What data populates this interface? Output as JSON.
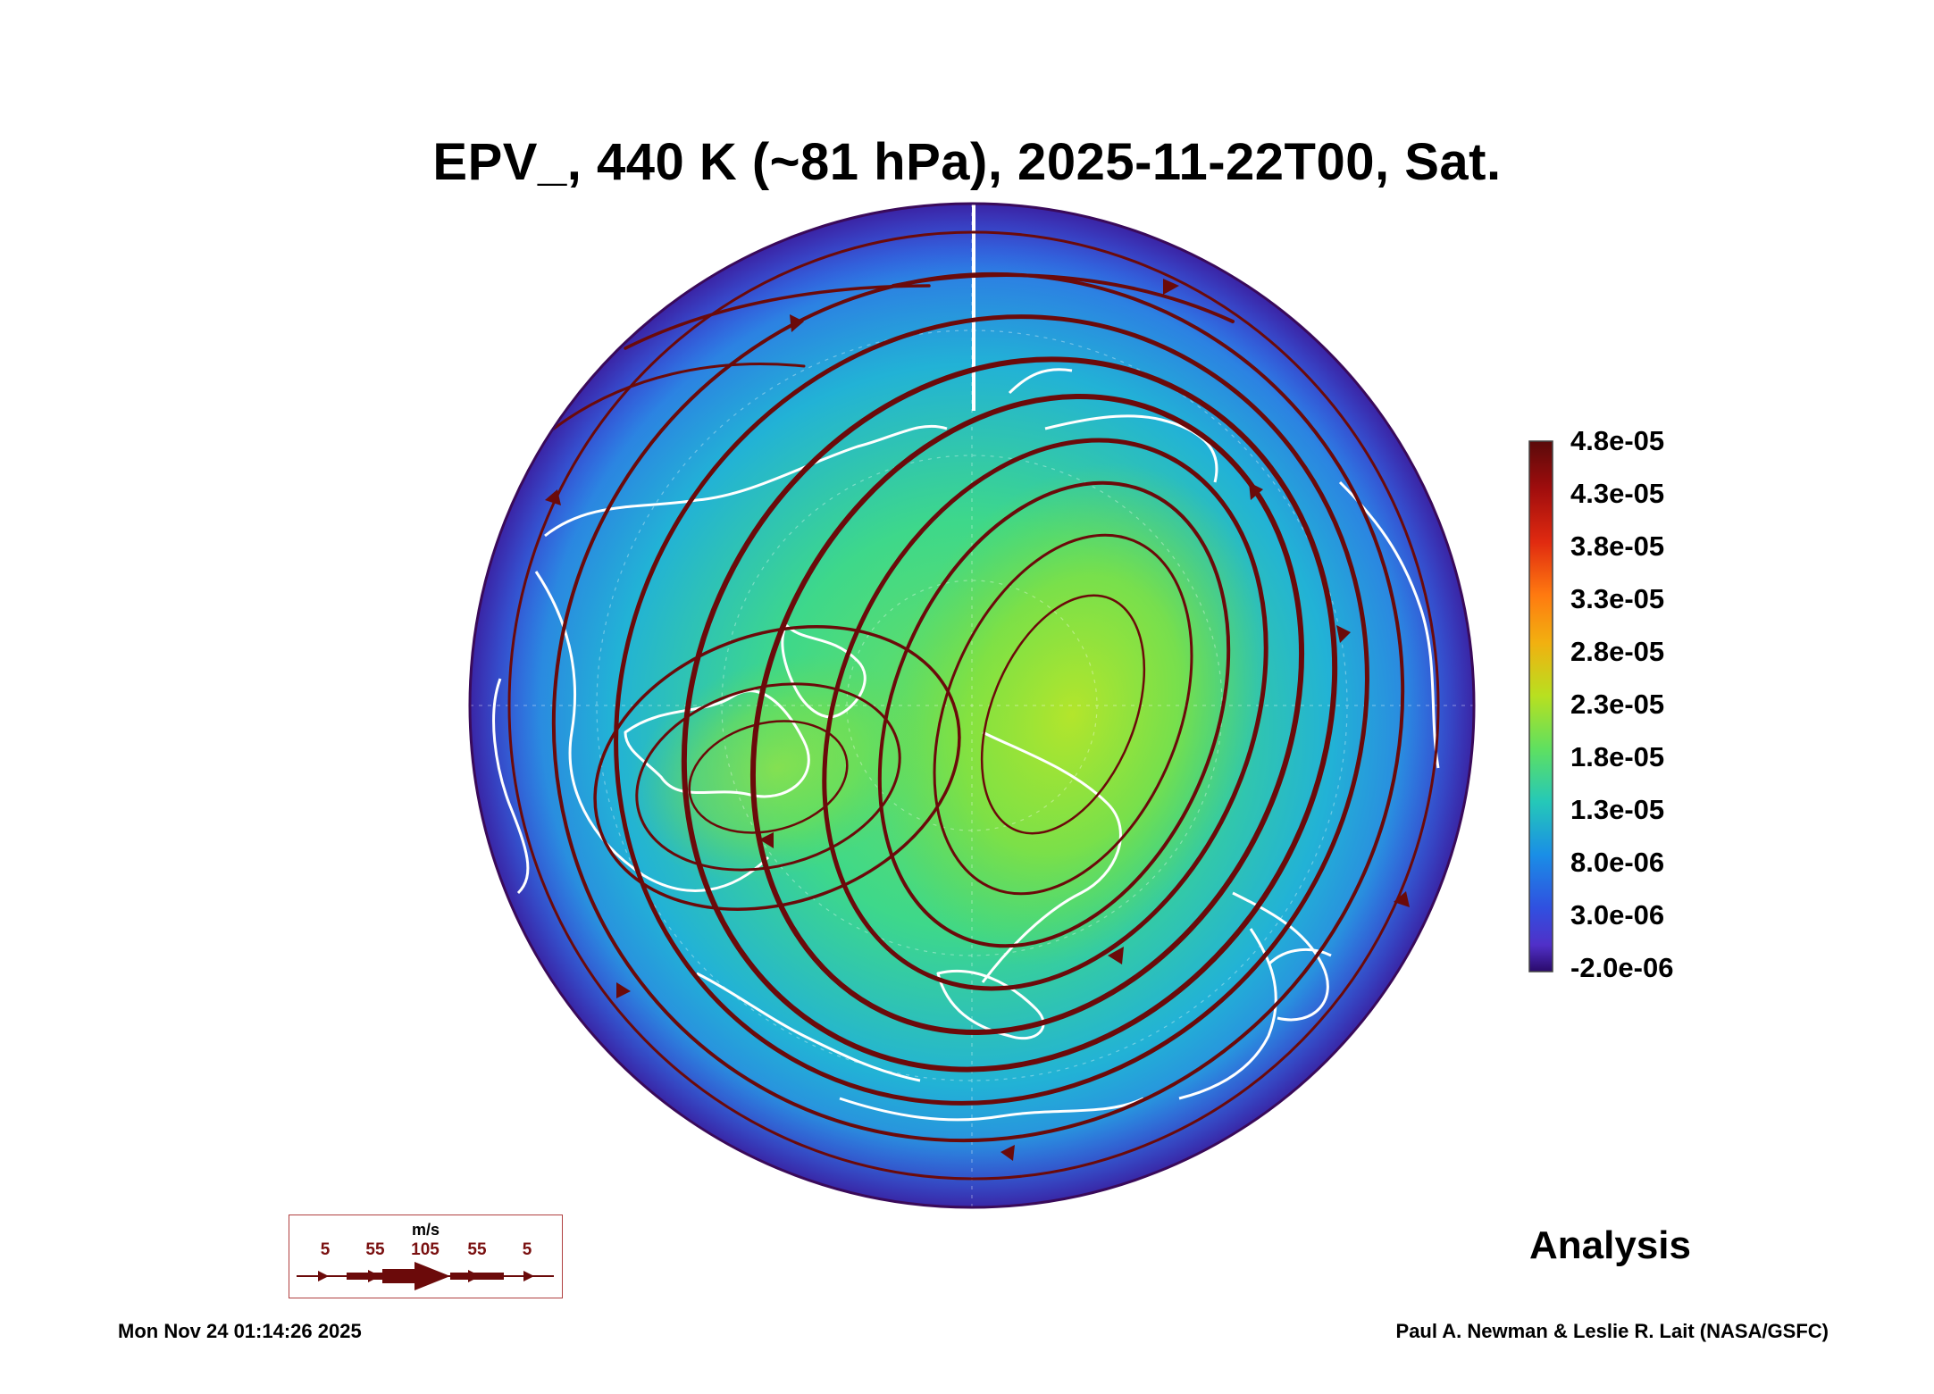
{
  "title": "EPV_, 440 K (~81 hPa), 2025-11-22T00, Sat.",
  "colorbar": {
    "labels": [
      "4.8e-05",
      "4.3e-05",
      "3.8e-05",
      "3.3e-05",
      "2.8e-05",
      "2.3e-05",
      "1.8e-05",
      "1.3e-05",
      "8.0e-06",
      "3.0e-06",
      "-2.0e-06"
    ],
    "colors": [
      "#5a0a0a",
      "#a00d0d",
      "#e02a10",
      "#ff6a10",
      "#f2b010",
      "#b8e020",
      "#70e050",
      "#2fd8a0",
      "#1aa0e0",
      "#2a60e8",
      "#5030d0",
      "#2a0a6a"
    ]
  },
  "streamline_color": "#6b0a0a",
  "coastline_color": "#ffffff",
  "wind_legend": {
    "unit": "m/s",
    "values": [
      "5",
      "55",
      "105",
      "55",
      "5"
    ]
  },
  "analysis_label": "Analysis",
  "timestamp": "Mon Nov 24 01:14:26 2025",
  "credit": "Paul A. Newman & Leslie R. Lait (NASA/GSFC)"
}
